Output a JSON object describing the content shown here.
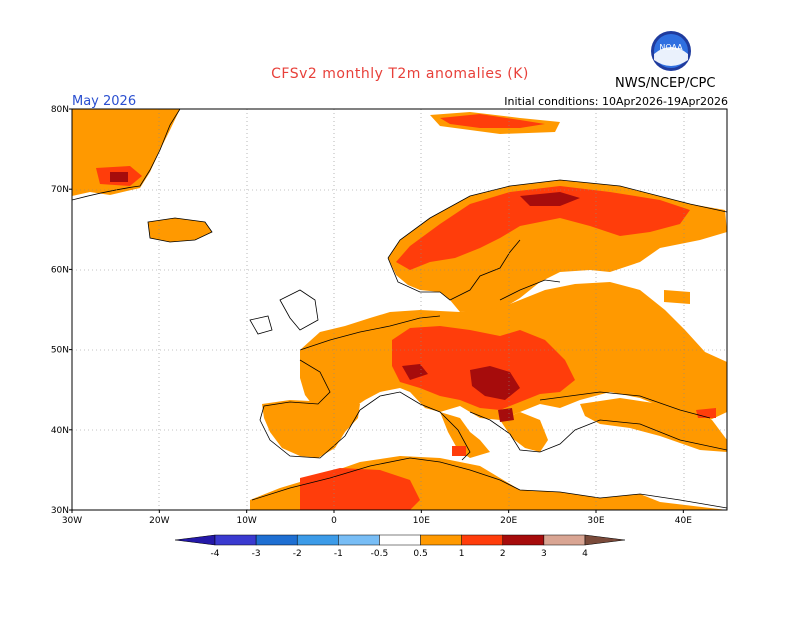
{
  "header": {
    "title": "CFSv2 monthly T2m anomalies (K)",
    "month": "May 2026",
    "initial_conditions": "Initial conditions: 10Apr2026-19Apr2026",
    "agency": "NWS/NCEP/CPC",
    "logo_text": "NOAA"
  },
  "map": {
    "lon_range": [
      -30,
      45
    ],
    "lat_range": [
      30,
      80
    ],
    "lat_labels": [
      "30N",
      "40N",
      "50N",
      "60N",
      "70N",
      "80N"
    ],
    "lon_labels": [
      "30W",
      "20W",
      "10W",
      "0",
      "10E",
      "20E",
      "30E",
      "40E"
    ]
  },
  "colorbar": {
    "ticks": [
      "-4",
      "-3",
      "-2",
      "-1",
      "-0.5",
      "0.5",
      "1",
      "2",
      "3",
      "4"
    ],
    "colors": [
      "#2418a8",
      "#3a3ad0",
      "#1e6fd2",
      "#3c9be8",
      "#78bdf5",
      "#ffffff",
      "#ff9900",
      "#ff3d0b",
      "#a60c0c",
      "#d9a593",
      "#7a4a3a"
    ]
  },
  "anomalies": {
    "comment_levels": "0.5-1 orange, 1-2 red-orange, 2-3 dark red",
    "level_colors": {
      "l1": "#ff9900",
      "l2": "#ff3d0b",
      "l3": "#a60c0c"
    }
  }
}
